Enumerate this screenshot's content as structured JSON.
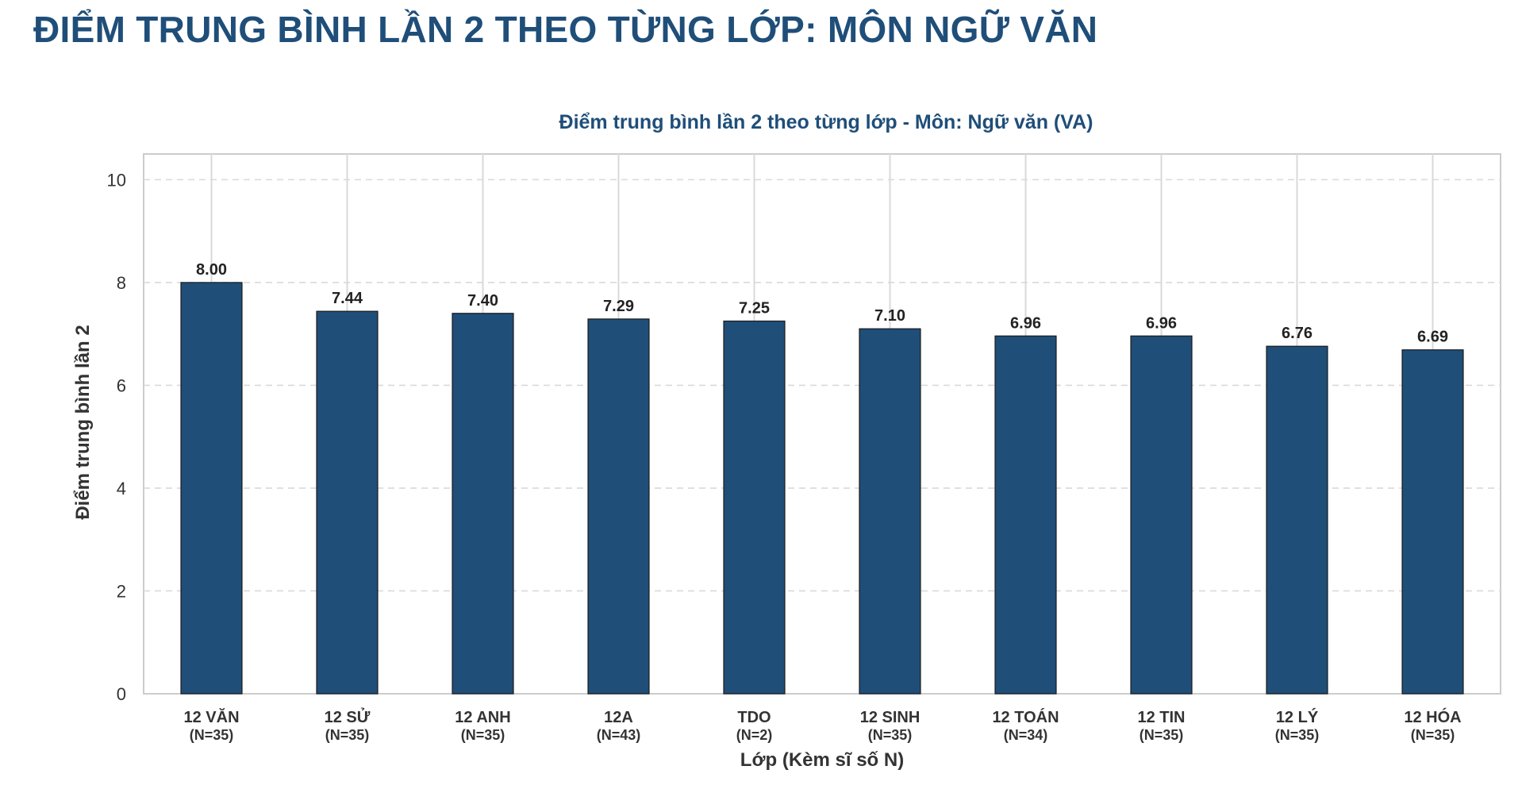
{
  "page": {
    "heading": "ĐIỂM TRUNG BÌNH LẦN 2 THEO TỪNG LỚP: MÔN NGỮ VĂN"
  },
  "colors": {
    "heading": "#1f4e79",
    "bar": "#1f4e79",
    "bar_edge": "#1a1a1a",
    "grid": "#d9d9d9",
    "frame": "#cccccc",
    "text": "#333333"
  },
  "chart_data": {
    "type": "bar",
    "title": "Điểm trung bình lần 2 theo từng lớp - Môn: Ngữ văn (VA)",
    "xlabel": "Lớp (Kèm sĩ số N)",
    "ylabel": "Điểm trung bình lần 2",
    "ylim": [
      0,
      10.5
    ],
    "yticks": [
      0,
      2,
      4,
      6,
      8,
      10
    ],
    "grid": true,
    "categories": [
      "12 VĂN",
      "12 SỬ",
      "12 ANH",
      "12A",
      "TDO",
      "12 SINH",
      "12 TOÁN",
      "12 TIN",
      "12 LÝ",
      "12 HÓA"
    ],
    "category_counts": [
      "(N=35)",
      "(N=35)",
      "(N=35)",
      "(N=43)",
      "(N=2)",
      "(N=35)",
      "(N=34)",
      "(N=35)",
      "(N=35)",
      "(N=35)"
    ],
    "values": [
      8.0,
      7.44,
      7.4,
      7.29,
      7.25,
      7.1,
      6.96,
      6.96,
      6.76,
      6.69
    ],
    "value_labels": [
      "8.00",
      "7.44",
      "7.40",
      "7.29",
      "7.25",
      "7.10",
      "6.96",
      "6.96",
      "6.76",
      "6.69"
    ]
  }
}
